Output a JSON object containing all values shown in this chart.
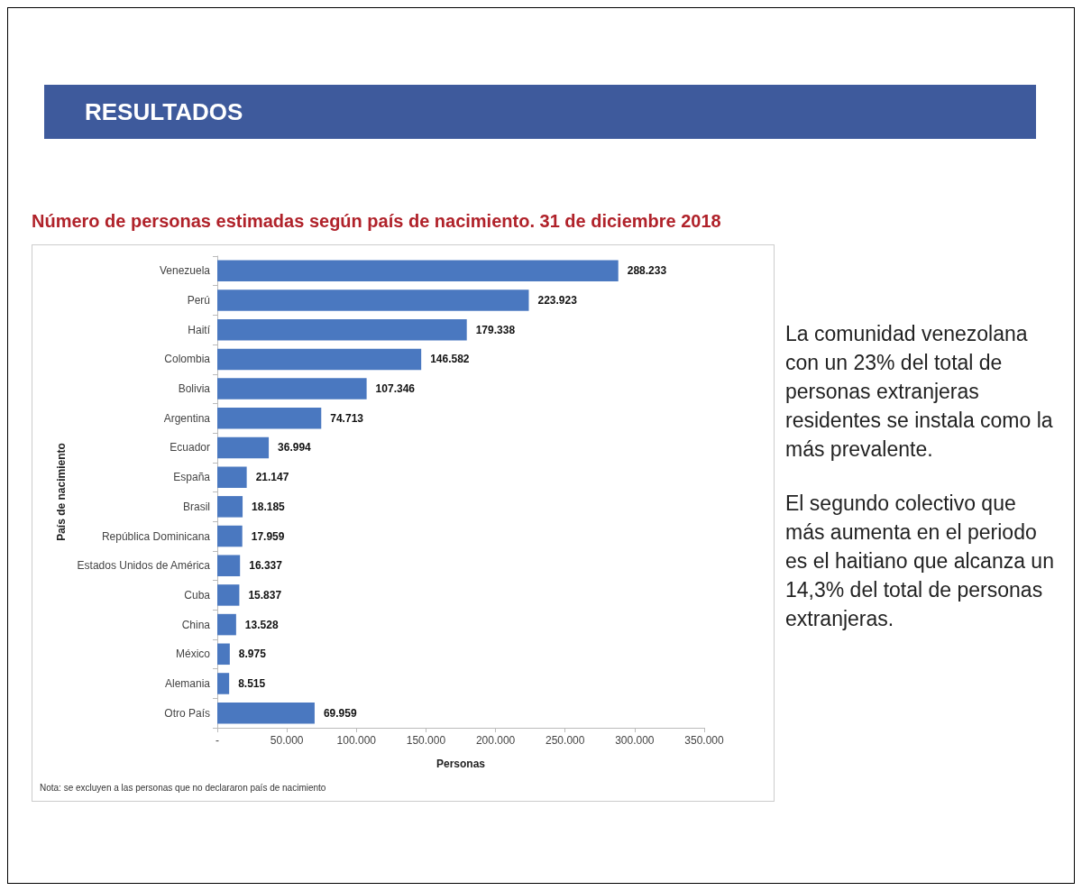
{
  "chart_data": {
    "type": "bar",
    "orientation": "horizontal",
    "title": "RESULTADOS",
    "subtitle": "Número de personas estimadas según país de nacimiento. 31 de diciembre 2018",
    "xlabel": "Personas",
    "ylabel": "País de nacimiento",
    "categories": [
      "Venezuela",
      "Perú",
      "Haití",
      "Colombia",
      "Bolivia",
      "Argentina",
      "Ecuador",
      "España",
      "Brasil",
      "República Dominicana",
      "Estados Unidos de América",
      "Cuba",
      "China",
      "México",
      "Alemania",
      "Otro País"
    ],
    "values": [
      288233,
      223923,
      179338,
      146582,
      107346,
      74713,
      36994,
      21147,
      18185,
      17959,
      16337,
      15837,
      13528,
      8975,
      8515,
      69959
    ],
    "value_labels": [
      "288.233",
      "223.923",
      "179.338",
      "146.582",
      "107.346",
      "74.713",
      "36.994",
      "21.147",
      "18.185",
      "17.959",
      "16.337",
      "15.837",
      "13.528",
      "8.975",
      "8.515",
      "69.959"
    ],
    "color": "#4a78c0",
    "xlim": [
      0,
      350000
    ],
    "xticks": [
      {
        "value": 0,
        "label": "-"
      },
      {
        "value": 50000,
        "label": "50.000"
      },
      {
        "value": 100000,
        "label": "100.000"
      },
      {
        "value": 150000,
        "label": "150.000"
      },
      {
        "value": 200000,
        "label": "200.000"
      },
      {
        "value": 250000,
        "label": "250.000"
      },
      {
        "value": 300000,
        "label": "300.000"
      },
      {
        "value": 350000,
        "label": "350.000"
      }
    ],
    "grid": false,
    "annotations": [
      "Nota: se excluyen a las personas que no declararon país de nacimiento",
      "La comunidad venezolana con un 23% del total de personas extranjeras residentes se instala como la más prevalente.",
      "El segundo colectivo que más aumenta en el periodo es el haitiano que alcanza un 14,3% del total de personas extranjeras."
    ]
  }
}
